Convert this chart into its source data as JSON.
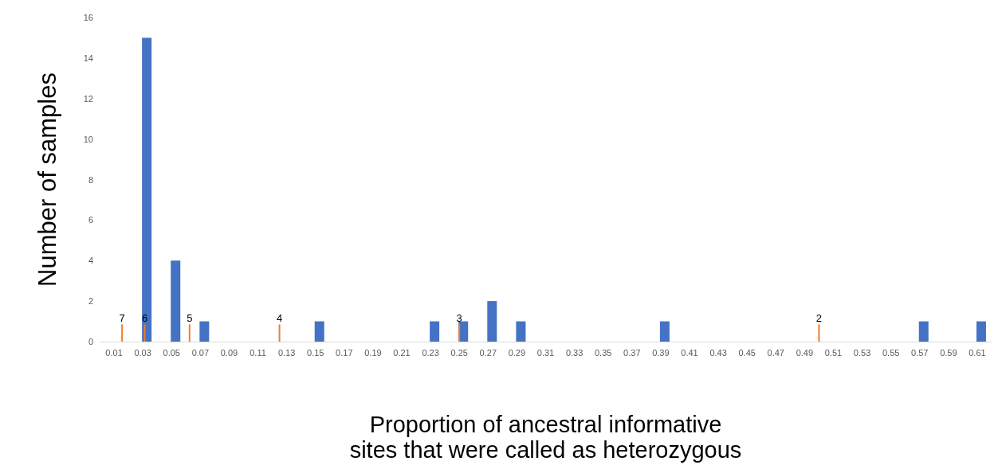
{
  "chart_data": {
    "type": "bar",
    "xlabel": "Proportion of ancestral informative sites that were called as heterozygous",
    "ylabel": "Number of samples",
    "series": [
      {
        "color": "#4472c4",
        "x": [
          0.03,
          0.05,
          0.07,
          0.15,
          0.23,
          0.25,
          0.27,
          0.29,
          0.39,
          0.57,
          0.61
        ],
        "values": [
          15,
          4,
          1,
          1,
          1,
          1,
          2,
          1,
          1,
          1,
          1
        ]
      },
      {
        "color": "#ed7d31",
        "x": [
          0.0156,
          0.0313,
          0.0625,
          0.125,
          0.25,
          0.5
        ],
        "values": [
          0.85,
          0.85,
          0.85,
          0.85,
          0.85,
          0.85
        ]
      }
    ],
    "annotations": [
      {
        "text": "7",
        "x": 0.0156,
        "y": 0.85
      },
      {
        "text": "6",
        "x": 0.0313,
        "y": 0.85
      },
      {
        "text": "5",
        "x": 0.0625,
        "y": 0.85
      },
      {
        "text": "4",
        "x": 0.125,
        "y": 0.85
      },
      {
        "text": "3",
        "x": 0.25,
        "y": 0.85
      },
      {
        "text": "2",
        "x": 0.5,
        "y": 0.85
      }
    ],
    "xlim": [
      0,
      0.62
    ],
    "xticks": [
      0.01,
      0.03,
      0.05,
      0.07,
      0.09,
      0.11,
      0.13,
      0.15,
      0.17,
      0.19,
      0.21,
      0.23,
      0.25,
      0.27,
      0.29,
      0.31,
      0.33,
      0.35,
      0.37,
      0.39,
      0.41,
      0.43,
      0.45,
      0.47,
      0.49,
      0.51,
      0.53,
      0.55,
      0.57,
      0.59,
      0.61
    ],
    "ylim": [
      0,
      16
    ],
    "yticks": [
      0,
      2,
      4,
      6,
      8,
      10,
      12,
      14,
      16
    ],
    "grid": false
  }
}
